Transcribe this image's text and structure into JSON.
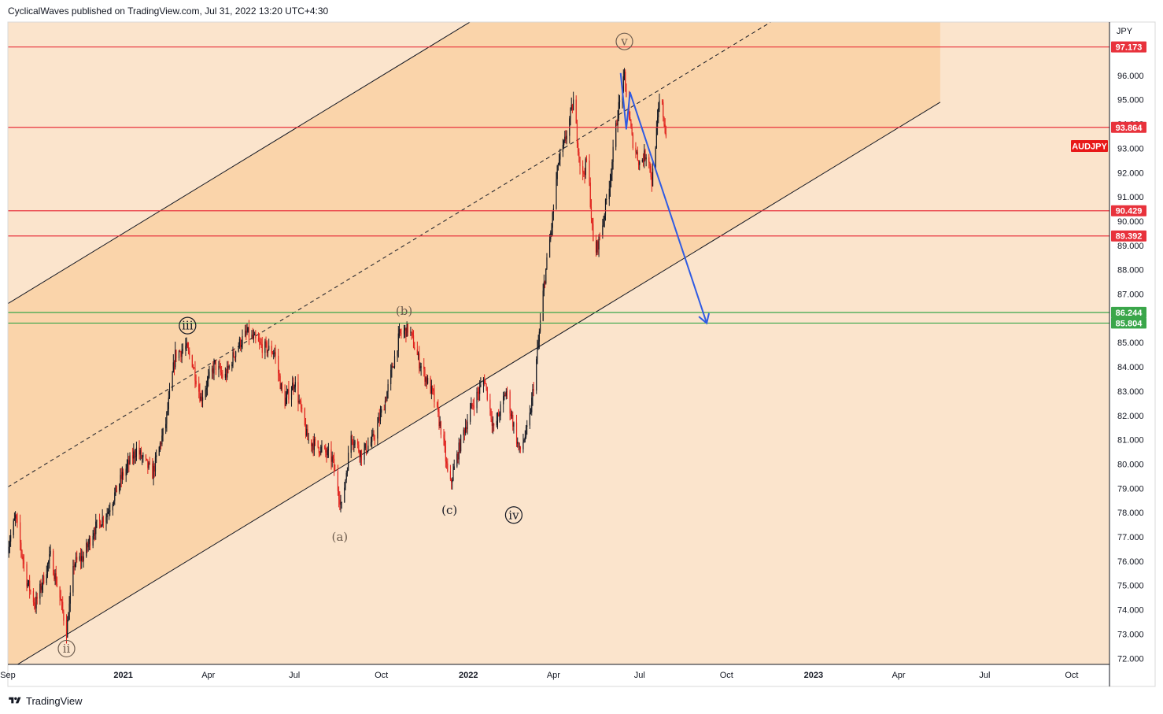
{
  "header": {
    "text": "CyclicalWaves published on TradingView.com, Jul 31, 2022 13:20 UTC+4:30"
  },
  "footer": {
    "brand": "TradingView"
  },
  "colors": {
    "panel_bg": "#fbe4cc",
    "channel_fill": "#f9d2a6",
    "resistance": "#e8323c",
    "support": "#3aa64a",
    "projection": "#2f5be3",
    "candle_up": "#131722",
    "candle_down": "#e0221d",
    "symbol_badge": "#e81818"
  },
  "chart_data": {
    "type": "candlestick",
    "symbol": "AUDJPY",
    "currency": "JPY",
    "ylim": [
      71.75,
      98.2
    ],
    "xlim": [
      "2020-09-01",
      "2023-11-10"
    ],
    "y_ticks": [
      "72.000",
      "73.000",
      "74.000",
      "75.000",
      "76.000",
      "77.000",
      "78.000",
      "79.000",
      "80.000",
      "81.000",
      "82.000",
      "83.000",
      "84.000",
      "85.000",
      "86.000",
      "87.000",
      "88.000",
      "89.000",
      "90.000",
      "91.000",
      "92.000",
      "93.000",
      "94.000",
      "95.000",
      "96.000"
    ],
    "x_ticks": [
      {
        "label": "Sep",
        "date": "2020-09-01",
        "bold": false
      },
      {
        "label": "2021",
        "date": "2021-01-01",
        "bold": true
      },
      {
        "label": "Apr",
        "date": "2021-04-01",
        "bold": false
      },
      {
        "label": "Jul",
        "date": "2021-07-01",
        "bold": false
      },
      {
        "label": "Oct",
        "date": "2021-10-01",
        "bold": false
      },
      {
        "label": "2022",
        "date": "2022-01-01",
        "bold": true
      },
      {
        "label": "Apr",
        "date": "2022-04-01",
        "bold": false
      },
      {
        "label": "Jul",
        "date": "2022-07-01",
        "bold": false
      },
      {
        "label": "Oct",
        "date": "2022-10-01",
        "bold": false
      },
      {
        "label": "2023",
        "date": "2023-01-01",
        "bold": true
      },
      {
        "label": "Apr",
        "date": "2023-04-01",
        "bold": false
      },
      {
        "label": "Jul",
        "date": "2023-07-01",
        "bold": false
      },
      {
        "label": "Oct",
        "date": "2023-10-01",
        "bold": false
      }
    ],
    "price_path": [
      [
        "2020-09-01",
        76.6
      ],
      [
        "2020-09-09",
        77.8
      ],
      [
        "2020-09-21",
        75.2
      ],
      [
        "2020-09-30",
        74.2
      ],
      [
        "2020-10-08",
        75.2
      ],
      [
        "2020-10-16",
        76.2
      ],
      [
        "2020-10-25",
        74.7
      ],
      [
        "2020-11-02",
        73.1
      ],
      [
        "2020-11-10",
        75.9
      ],
      [
        "2020-11-20",
        76.2
      ],
      [
        "2020-12-01",
        77.3
      ],
      [
        "2020-12-15",
        78.0
      ],
      [
        "2021-01-01",
        79.6
      ],
      [
        "2021-01-15",
        80.6
      ],
      [
        "2021-02-01",
        79.6
      ],
      [
        "2021-02-15",
        81.7
      ],
      [
        "2021-02-25",
        84.5
      ],
      [
        "2021-03-08",
        84.8
      ],
      [
        "2021-03-15",
        84.2
      ],
      [
        "2021-03-24",
        82.7
      ],
      [
        "2021-04-08",
        84.1
      ],
      [
        "2021-04-18",
        83.5
      ],
      [
        "2021-05-01",
        84.8
      ],
      [
        "2021-05-12",
        85.4
      ],
      [
        "2021-05-25",
        84.9
      ],
      [
        "2021-06-10",
        84.6
      ],
      [
        "2021-06-20",
        82.5
      ],
      [
        "2021-07-01",
        83.4
      ],
      [
        "2021-07-15",
        81.0
      ],
      [
        "2021-07-30",
        80.6
      ],
      [
        "2021-08-10",
        80.2
      ],
      [
        "2021-08-20",
        78.2
      ],
      [
        "2021-08-30",
        81.2
      ],
      [
        "2021-09-10",
        80.4
      ],
      [
        "2021-09-22",
        81.0
      ],
      [
        "2021-10-05",
        82.6
      ],
      [
        "2021-10-20",
        85.3
      ],
      [
        "2021-10-30",
        85.6
      ],
      [
        "2021-11-10",
        84.2
      ],
      [
        "2021-11-25",
        82.8
      ],
      [
        "2021-12-05",
        81.1
      ],
      [
        "2021-12-12",
        79.0
      ],
      [
        "2021-12-25",
        81.1
      ],
      [
        "2022-01-05",
        82.4
      ],
      [
        "2022-01-18",
        83.5
      ],
      [
        "2022-01-28",
        81.4
      ],
      [
        "2022-02-10",
        83.0
      ],
      [
        "2022-02-24",
        80.5
      ],
      [
        "2022-03-06",
        81.6
      ],
      [
        "2022-03-15",
        84.6
      ],
      [
        "2022-03-22",
        87.4
      ],
      [
        "2022-03-30",
        89.8
      ],
      [
        "2022-04-06",
        92.4
      ],
      [
        "2022-04-12",
        93.1
      ],
      [
        "2022-04-22",
        94.9
      ],
      [
        "2022-05-01",
        91.7
      ],
      [
        "2022-05-07",
        92.6
      ],
      [
        "2022-05-14",
        88.5
      ],
      [
        "2022-05-22",
        89.7
      ],
      [
        "2022-05-31",
        91.8
      ],
      [
        "2022-06-08",
        94.5
      ],
      [
        "2022-06-15",
        95.9
      ],
      [
        "2022-06-23",
        93.4
      ],
      [
        "2022-07-01",
        92.4
      ],
      [
        "2022-07-10",
        92.9
      ],
      [
        "2022-07-14",
        91.6
      ],
      [
        "2022-07-23",
        95.3
      ],
      [
        "2022-07-29",
        93.5
      ]
    ],
    "horizontal_levels": [
      {
        "price": 97.173,
        "label": "97.173",
        "kind": "resistance"
      },
      {
        "price": 93.864,
        "label": "93.864",
        "kind": "resistance"
      },
      {
        "price": 90.429,
        "label": "90.429",
        "kind": "resistance"
      },
      {
        "price": 89.392,
        "label": "89.392",
        "kind": "resistance"
      },
      {
        "price": 86.244,
        "label": "86.244",
        "kind": "support"
      },
      {
        "price": 85.804,
        "label": "85.804",
        "kind": "support"
      }
    ],
    "channel": {
      "lower_start": [
        "2020-09-05",
        71.6
      ],
      "lower_end": [
        "2023-05-15",
        94.9
      ],
      "upper_offset": 15.1,
      "projected_until": "2023-05-15"
    },
    "wave_labels": [
      {
        "text": "ii",
        "date": "2020-11-02",
        "price": 72.4,
        "circled": true,
        "muted": true
      },
      {
        "text": "iii",
        "date": "2021-03-10",
        "price": 85.7,
        "circled": true,
        "muted": false
      },
      {
        "text": "(a)",
        "date": "2021-08-18",
        "price": 77.0,
        "circled": false,
        "muted": true
      },
      {
        "text": "(b)",
        "date": "2021-10-25",
        "price": 86.3,
        "circled": false,
        "muted": true
      },
      {
        "text": "(c)",
        "date": "2021-12-12",
        "price": 78.1,
        "circled": false,
        "muted": false
      },
      {
        "text": "iv",
        "date": "2022-02-18",
        "price": 77.9,
        "circled": true,
        "muted": false
      },
      {
        "text": "v",
        "date": "2022-06-15",
        "price": 97.4,
        "circled": true,
        "muted": true
      }
    ],
    "projection_path": [
      [
        "2022-06-11",
        96.1
      ],
      [
        "2022-06-17",
        93.8
      ],
      [
        "2022-06-21",
        95.3
      ],
      [
        "2022-09-10",
        85.8
      ]
    ],
    "projection_arrow_tip": [
      "2022-09-10",
      85.8
    ]
  }
}
